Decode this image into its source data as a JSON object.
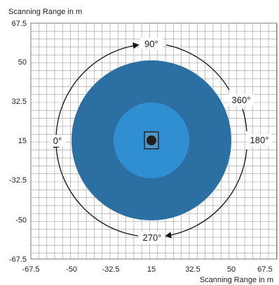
{
  "axes": {
    "y_title": "Scanning Range in m",
    "x_title": "Scanning Range in m",
    "y_ticks": [
      "67.5",
      "50",
      "32.5",
      "15",
      "-32.5",
      "-50",
      "-67.5"
    ],
    "x_ticks": [
      "-67.5",
      "-50",
      "-32.5",
      "15",
      "32.5",
      "50",
      "67.5"
    ]
  },
  "angles": {
    "top": "90°",
    "right_upper": "360°",
    "right": "180°",
    "bottom": "270°",
    "left": "0°"
  },
  "colors": {
    "outer_range": "#2b6fa3",
    "inner_range": "#2f8fd0",
    "grid": "#9a9a9a",
    "sensor": "#1f1f1f",
    "sensor_housing": "#4f94c8"
  }
}
